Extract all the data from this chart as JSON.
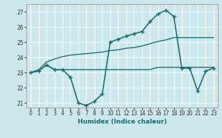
{
  "xlabel": "Humidex (Indice chaleur)",
  "background_color": "#cce8ec",
  "grid_color": "#ffffff",
  "line_color": "#1a6b6b",
  "xlim": [
    -0.5,
    23.5
  ],
  "ylim": [
    20.7,
    27.5
  ],
  "yticks": [
    21,
    22,
    23,
    24,
    25,
    26,
    27
  ],
  "xticks": [
    0,
    1,
    2,
    3,
    4,
    5,
    6,
    7,
    8,
    9,
    10,
    11,
    12,
    13,
    14,
    15,
    16,
    17,
    18,
    19,
    20,
    21,
    22,
    23
  ],
  "series": [
    {
      "x": [
        0,
        1,
        2,
        3,
        4,
        5,
        6,
        7,
        8,
        9,
        10,
        11,
        12,
        13,
        14,
        15,
        16,
        17,
        18,
        19,
        20,
        21,
        22,
        23
      ],
      "y": [
        23.0,
        23.1,
        23.5,
        23.2,
        23.2,
        22.7,
        21.0,
        20.85,
        21.1,
        21.6,
        25.0,
        25.2,
        25.4,
        25.55,
        25.7,
        26.35,
        26.85,
        27.1,
        26.7,
        23.3,
        23.3,
        21.8,
        23.1,
        23.3
      ],
      "marker": "+",
      "linewidth": 1.2,
      "markersize": 4
    },
    {
      "x": [
        0,
        1,
        2,
        3,
        4,
        5,
        6,
        7,
        8,
        9,
        10,
        11,
        12,
        13,
        14,
        15,
        16,
        17,
        18,
        19,
        20,
        21,
        22,
        23
      ],
      "y": [
        23.0,
        23.1,
        23.5,
        23.2,
        23.2,
        23.2,
        23.2,
        23.2,
        23.2,
        23.2,
        23.2,
        23.2,
        23.2,
        23.2,
        23.2,
        23.2,
        23.35,
        23.35,
        23.35,
        23.35,
        23.35,
        23.35,
        23.35,
        23.35
      ],
      "marker": null,
      "linewidth": 1.0
    },
    {
      "x": [
        0,
        1,
        2,
        3,
        4,
        5,
        6,
        7,
        8,
        9,
        10,
        11,
        12,
        13,
        14,
        15,
        16,
        17,
        18,
        19,
        20,
        21,
        22,
        23
      ],
      "y": [
        23.0,
        23.2,
        23.7,
        23.9,
        24.05,
        24.15,
        24.2,
        24.25,
        24.3,
        24.35,
        24.45,
        24.5,
        24.6,
        24.65,
        24.75,
        24.9,
        25.05,
        25.15,
        25.3,
        25.3,
        25.3,
        25.3,
        25.3,
        25.3
      ],
      "marker": null,
      "linewidth": 1.0
    }
  ]
}
